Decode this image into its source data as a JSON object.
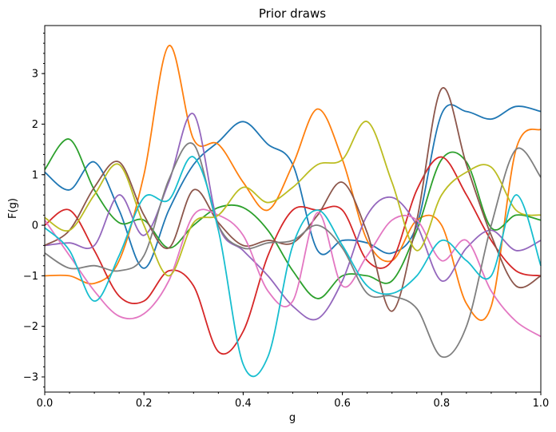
{
  "chart_data": {
    "type": "line",
    "title": "Prior draws",
    "xlabel": "g",
    "ylabel": "F(g)",
    "xlim": [
      0.0,
      1.0
    ],
    "ylim": [
      -3.3,
      3.95
    ],
    "xticks": [
      0.0,
      0.2,
      0.4,
      0.6,
      0.8,
      1.0
    ],
    "xtick_labels": [
      "0.0",
      "0.2",
      "0.4",
      "0.6",
      "0.8",
      "1.0"
    ],
    "yticks": [
      -3,
      -2,
      -1,
      0,
      1,
      2,
      3
    ],
    "ytick_labels": [
      "−3",
      "−2",
      "−1",
      "0",
      "1",
      "2",
      "3"
    ],
    "grid": false,
    "legend": "none",
    "series": [
      {
        "color": "#1f77b4",
        "x": [
          0,
          0.05,
          0.1,
          0.15,
          0.2,
          0.25,
          0.3,
          0.35,
          0.4,
          0.45,
          0.5,
          0.55,
          0.6,
          0.65,
          0.7,
          0.75,
          0.8,
          0.85,
          0.9,
          0.95,
          1.0
        ],
        "values": [
          1.05,
          0.7,
          1.25,
          0.3,
          -0.85,
          0.3,
          1.2,
          1.65,
          2.05,
          1.6,
          1.2,
          -0.5,
          -0.3,
          -0.35,
          -0.55,
          0.0,
          2.2,
          2.25,
          2.1,
          2.35,
          2.25
        ]
      },
      {
        "color": "#ff7f0e",
        "x": [
          0,
          0.05,
          0.1,
          0.15,
          0.2,
          0.25,
          0.3,
          0.35,
          0.4,
          0.45,
          0.5,
          0.55,
          0.6,
          0.65,
          0.7,
          0.75,
          0.8,
          0.85,
          0.9,
          0.95,
          1.0
        ],
        "values": [
          -1.0,
          -1.0,
          -1.15,
          -0.7,
          1.0,
          3.55,
          1.7,
          1.6,
          0.85,
          0.3,
          1.2,
          2.3,
          1.3,
          -0.3,
          -0.7,
          0.1,
          0.0,
          -1.55,
          -1.6,
          1.5,
          1.9
        ]
      },
      {
        "color": "#2ca02c",
        "x": [
          0,
          0.05,
          0.1,
          0.15,
          0.2,
          0.25,
          0.3,
          0.35,
          0.4,
          0.45,
          0.5,
          0.55,
          0.6,
          0.65,
          0.7,
          0.75,
          0.8,
          0.85,
          0.9,
          0.95,
          1.0
        ],
        "values": [
          1.1,
          1.7,
          0.7,
          0.05,
          0.1,
          -0.45,
          0.0,
          0.35,
          0.35,
          -0.1,
          -0.9,
          -1.45,
          -1.0,
          -1.0,
          -1.1,
          -0.1,
          1.3,
          1.25,
          -0.05,
          0.2,
          0.1
        ]
      },
      {
        "color": "#d62728",
        "x": [
          0,
          0.05,
          0.1,
          0.15,
          0.2,
          0.25,
          0.3,
          0.35,
          0.4,
          0.45,
          0.5,
          0.55,
          0.6,
          0.65,
          0.7,
          0.75,
          0.8,
          0.85,
          0.9,
          0.95,
          1.0
        ],
        "values": [
          0.0,
          0.3,
          -0.5,
          -1.4,
          -1.5,
          -0.9,
          -1.2,
          -2.5,
          -2.1,
          -0.6,
          0.3,
          0.3,
          0.3,
          -0.7,
          -0.7,
          0.7,
          1.35,
          0.6,
          -0.3,
          -0.9,
          -1.0
        ]
      },
      {
        "color": "#9467bd",
        "x": [
          0,
          0.05,
          0.1,
          0.15,
          0.2,
          0.25,
          0.3,
          0.35,
          0.4,
          0.45,
          0.5,
          0.55,
          0.6,
          0.65,
          0.7,
          0.75,
          0.8,
          0.85,
          0.9,
          0.95,
          1.0
        ],
        "values": [
          -0.4,
          -0.35,
          -0.4,
          0.6,
          -0.2,
          0.85,
          2.2,
          0.0,
          -0.5,
          -1.0,
          -1.6,
          -1.85,
          -1.1,
          0.2,
          0.55,
          0.0,
          -1.1,
          -0.45,
          -0.1,
          -0.5,
          -0.3
        ]
      },
      {
        "color": "#8c564b",
        "x": [
          0,
          0.05,
          0.1,
          0.15,
          0.2,
          0.25,
          0.3,
          0.35,
          0.4,
          0.45,
          0.5,
          0.55,
          0.6,
          0.65,
          0.7,
          0.75,
          0.8,
          0.85,
          0.9,
          0.95,
          1.0
        ],
        "values": [
          -0.4,
          -0.1,
          0.75,
          1.25,
          0.2,
          -0.45,
          0.7,
          0.05,
          -0.4,
          -0.3,
          -0.35,
          0.2,
          0.85,
          -0.15,
          -1.7,
          0.1,
          2.7,
          1.2,
          -0.2,
          -1.2,
          -1.0
        ]
      },
      {
        "color": "#e377c2",
        "x": [
          0,
          0.05,
          0.1,
          0.15,
          0.2,
          0.25,
          0.3,
          0.35,
          0.4,
          0.45,
          0.5,
          0.55,
          0.6,
          0.65,
          0.7,
          0.75,
          0.8,
          0.85,
          0.9,
          0.95,
          1.0
        ],
        "values": [
          0.1,
          -0.6,
          -1.3,
          -1.8,
          -1.75,
          -1.1,
          0.2,
          0.2,
          -0.2,
          -1.3,
          -1.5,
          0.25,
          -1.2,
          -0.6,
          0.1,
          0.1,
          -0.7,
          -0.3,
          -1.3,
          -1.9,
          -2.2
        ]
      },
      {
        "color": "#7f7f7f",
        "x": [
          0,
          0.05,
          0.1,
          0.15,
          0.2,
          0.25,
          0.3,
          0.35,
          0.4,
          0.45,
          0.5,
          0.55,
          0.6,
          0.65,
          0.7,
          0.75,
          0.8,
          0.85,
          0.9,
          0.95,
          1.0
        ],
        "values": [
          -0.55,
          -0.85,
          -0.8,
          -0.9,
          -0.6,
          0.9,
          1.6,
          0.0,
          -0.45,
          -0.35,
          -0.3,
          0.0,
          -0.45,
          -1.35,
          -1.4,
          -1.65,
          -2.6,
          -2.0,
          0.0,
          1.5,
          0.95
        ]
      },
      {
        "color": "#bcbd22",
        "x": [
          0,
          0.05,
          0.1,
          0.15,
          0.2,
          0.25,
          0.3,
          0.35,
          0.4,
          0.45,
          0.5,
          0.55,
          0.6,
          0.65,
          0.7,
          0.75,
          0.8,
          0.85,
          0.9,
          0.95,
          1.0
        ],
        "values": [
          0.15,
          -0.1,
          0.6,
          1.2,
          0.0,
          -1.0,
          0.05,
          0.2,
          0.75,
          0.45,
          0.75,
          1.2,
          1.3,
          2.05,
          0.85,
          -0.5,
          0.6,
          1.05,
          1.15,
          0.3,
          0.2
        ]
      },
      {
        "color": "#17becf",
        "x": [
          0,
          0.05,
          0.1,
          0.15,
          0.2,
          0.25,
          0.3,
          0.35,
          0.4,
          0.45,
          0.5,
          0.55,
          0.6,
          0.65,
          0.7,
          0.75,
          0.8,
          0.85,
          0.9,
          0.95,
          1.0
        ],
        "values": [
          -0.05,
          -0.5,
          -1.5,
          -0.6,
          0.55,
          0.5,
          1.35,
          -0.1,
          -2.75,
          -2.6,
          -0.4,
          0.3,
          -0.4,
          -1.2,
          -1.35,
          -1.0,
          -0.3,
          -0.7,
          -1.0,
          0.6,
          -0.8
        ]
      }
    ]
  }
}
